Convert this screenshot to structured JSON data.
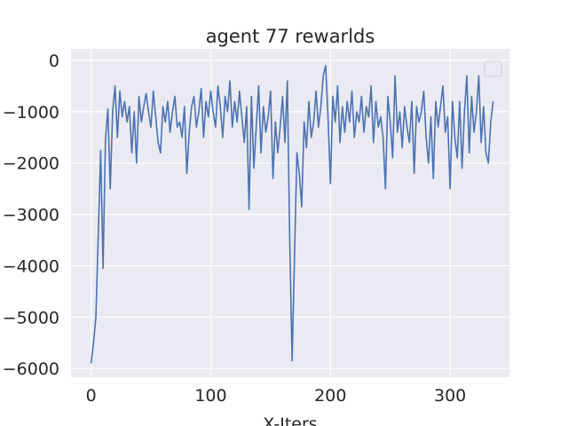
{
  "chart_data": {
    "type": "line",
    "title": "agent 77 rewarlds",
    "xlabel": "X-Iters",
    "color": "#4c72b0",
    "legend": "upper right",
    "grid": true,
    "xlim": [
      -16.8,
      349.6
    ],
    "ylim": [
      -6170,
      225
    ],
    "xticks": [
      0,
      100,
      200,
      300
    ],
    "yticks": [
      0,
      {
        "value": -1000,
        "label": "−1000"
      },
      {
        "value": -2000,
        "label": "−2000"
      },
      {
        "value": -3000,
        "label": "−3000"
      },
      {
        "value": -4000,
        "label": "−4000"
      },
      {
        "value": -5000,
        "label": "−5000"
      },
      {
        "value": -6000,
        "label": "−6000"
      }
    ],
    "x": [
      0,
      2,
      4,
      6,
      8,
      10,
      12,
      14,
      16,
      18,
      20,
      22,
      24,
      26,
      28,
      30,
      32,
      34,
      36,
      38,
      40,
      42,
      44,
      46,
      48,
      50,
      52,
      54,
      56,
      58,
      60,
      62,
      64,
      66,
      68,
      70,
      72,
      74,
      76,
      78,
      80,
      82,
      84,
      86,
      88,
      90,
      92,
      94,
      96,
      98,
      100,
      102,
      104,
      106,
      108,
      110,
      112,
      114,
      116,
      118,
      120,
      122,
      124,
      126,
      128,
      130,
      132,
      134,
      136,
      138,
      140,
      142,
      144,
      146,
      148,
      150,
      152,
      154,
      156,
      158,
      160,
      162,
      164,
      166,
      168,
      170,
      172,
      174,
      176,
      178,
      180,
      182,
      184,
      186,
      188,
      190,
      192,
      194,
      196,
      198,
      200,
      202,
      204,
      206,
      208,
      210,
      212,
      214,
      216,
      218,
      220,
      222,
      224,
      226,
      228,
      230,
      232,
      234,
      236,
      238,
      240,
      242,
      244,
      246,
      248,
      250,
      252,
      254,
      256,
      258,
      260,
      262,
      264,
      266,
      268,
      270,
      272,
      274,
      276,
      278,
      280,
      282,
      284,
      286,
      288,
      290,
      292,
      294,
      296,
      298,
      300,
      302,
      304,
      306,
      308,
      310,
      312,
      314,
      316,
      318,
      320,
      322,
      324,
      326,
      328,
      330,
      332,
      334,
      336
    ],
    "values": [
      -5900,
      -5500,
      -5000,
      -3400,
      -1750,
      -4050,
      -1550,
      -950,
      -2500,
      -1000,
      -500,
      -1500,
      -600,
      -1100,
      -800,
      -1200,
      -900,
      -1800,
      -1000,
      -2000,
      -700,
      -1200,
      -900,
      -650,
      -1000,
      -1300,
      -600,
      -1100,
      -1600,
      -1800,
      -900,
      -1200,
      -800,
      -1400,
      -1000,
      -700,
      -1300,
      -1200,
      -1500,
      -900,
      -2200,
      -1400,
      -900,
      -700,
      -1300,
      -1000,
      -550,
      -1500,
      -800,
      -1100,
      -600,
      -1000,
      -1300,
      -500,
      -900,
      -1500,
      -700,
      -1000,
      -400,
      -1300,
      -800,
      -1200,
      -600,
      -1100,
      -1600,
      -900,
      -2900,
      -700,
      -2100,
      -1300,
      -500,
      -1800,
      -900,
      -1400,
      -1100,
      -600,
      -2300,
      -1200,
      -1800,
      -1300,
      -700,
      -1600,
      -400,
      -3500,
      -5850,
      -3800,
      -1800,
      -2200,
      -2850,
      -1200,
      -1700,
      -800,
      -1500,
      -1200,
      -600,
      -1300,
      -900,
      -300,
      -100,
      -1100,
      -2400,
      -700,
      -1200,
      -500,
      -1600,
      -900,
      -1400,
      -800,
      -1200,
      -600,
      -1500,
      -1000,
      -1200,
      -700,
      -1400,
      -900,
      -1100,
      -500,
      -1600,
      -800,
      -1300,
      -1100,
      -1500,
      -2500,
      -700,
      -1200,
      -1900,
      -300,
      -1400,
      -1000,
      -1700,
      -900,
      -1300,
      -1600,
      -800,
      -2200,
      -900,
      -1200,
      -1000,
      -600,
      -1500,
      -2000,
      -1100,
      -2300,
      -800,
      -1300,
      -900,
      -500,
      -1400,
      -1100,
      -2500,
      -800,
      -1500,
      -1900,
      -800,
      -2100,
      -1000,
      -300,
      -1800,
      -700,
      -1400,
      -1000,
      -300,
      -1600,
      -900,
      -1800,
      -2000,
      -1200,
      -800
    ]
  }
}
